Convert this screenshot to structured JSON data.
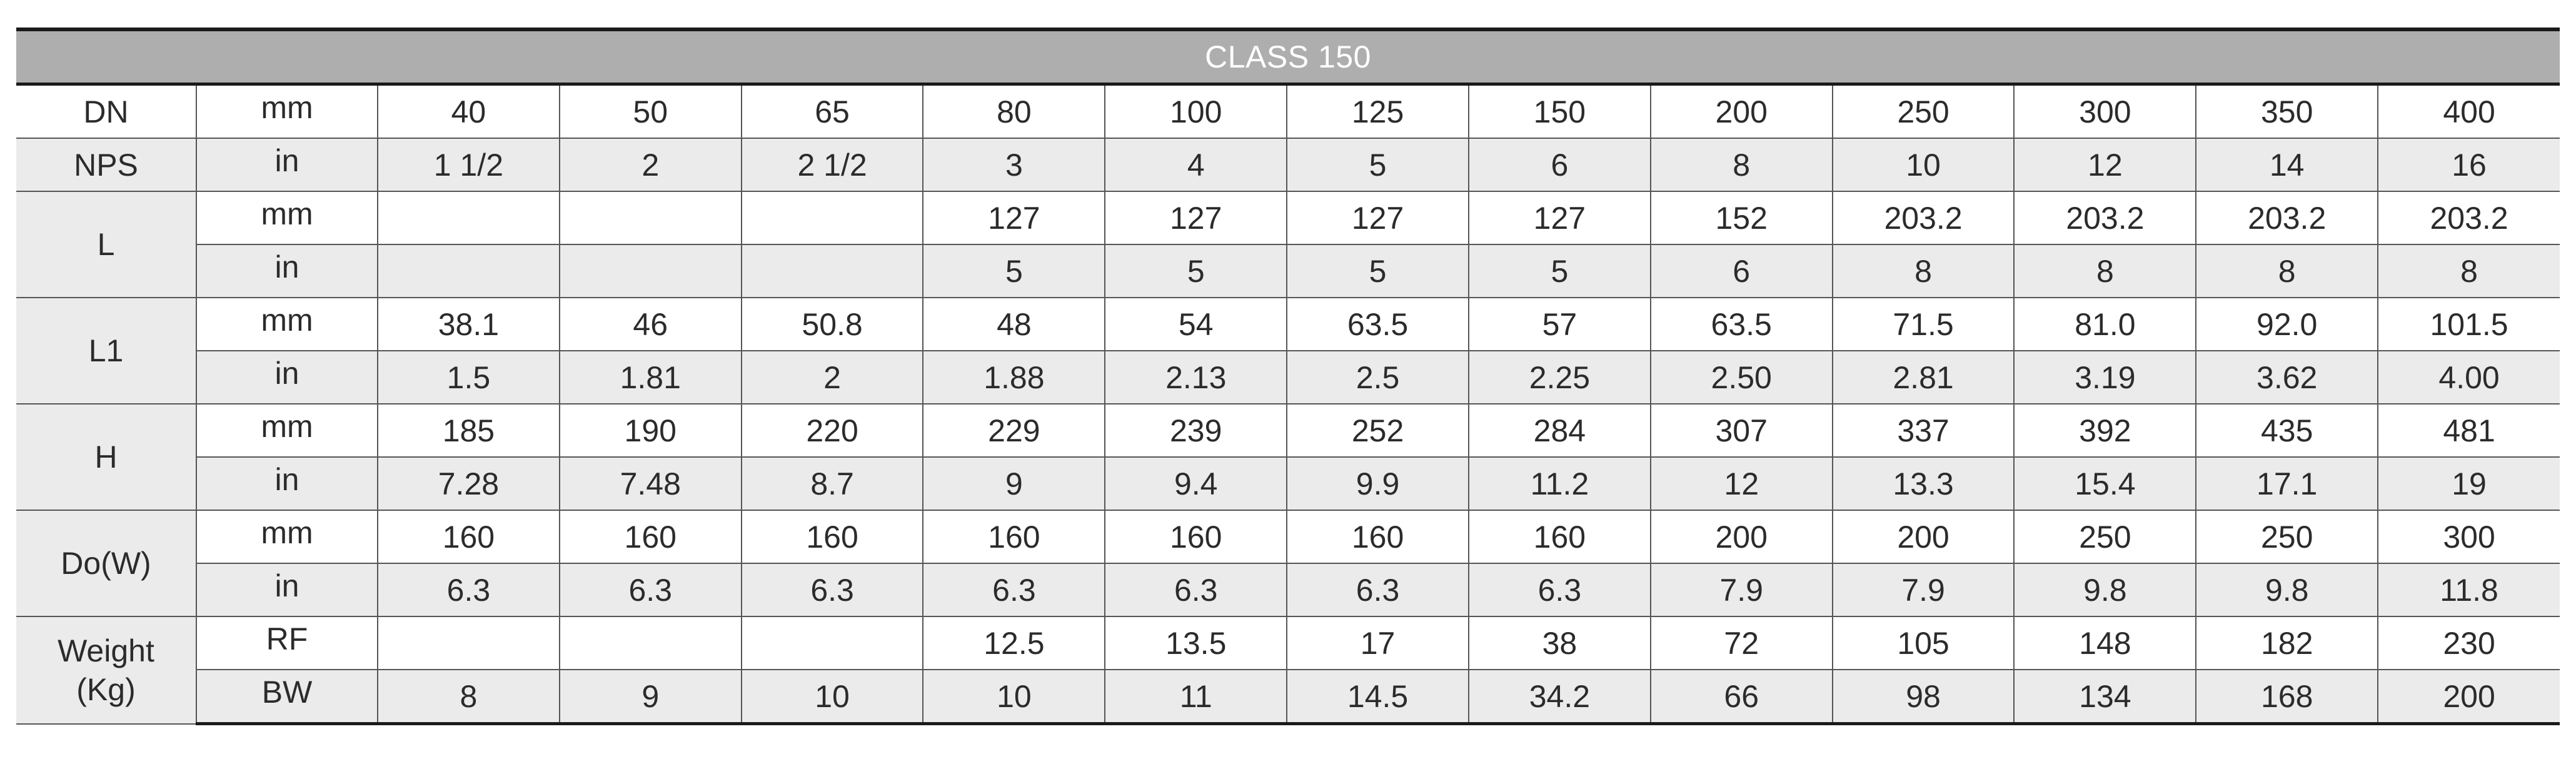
{
  "title": "CLASS 150",
  "rows": [
    {
      "label": "DN",
      "unit": "mm",
      "values": [
        "40",
        "50",
        "65",
        "80",
        "100",
        "125",
        "150",
        "200",
        "250",
        "300",
        "350",
        "400"
      ]
    },
    {
      "label": "NPS",
      "unit": "in",
      "values": [
        "1 1/2",
        "2",
        "2 1/2",
        "3",
        "4",
        "5",
        "6",
        "8",
        "10",
        "12",
        "14",
        "16"
      ]
    },
    {
      "label": "L",
      "unit": "mm",
      "values": [
        "",
        "",
        "",
        "127",
        "127",
        "127",
        "127",
        "152",
        "203.2",
        "203.2",
        "203.2",
        "203.2"
      ]
    },
    {
      "label": "",
      "unit": "in",
      "values": [
        "",
        "",
        "",
        "5",
        "5",
        "5",
        "5",
        "6",
        "8",
        "8",
        "8",
        "8"
      ]
    },
    {
      "label": "L1",
      "unit": "mm",
      "values": [
        "38.1",
        "46",
        "50.8",
        "48",
        "54",
        "63.5",
        "57",
        "63.5",
        "71.5",
        "81.0",
        "92.0",
        "101.5"
      ]
    },
    {
      "label": "",
      "unit": "in",
      "values": [
        "1.5",
        "1.81",
        "2",
        "1.88",
        "2.13",
        "2.5",
        "2.25",
        "2.50",
        "2.81",
        "3.19",
        "3.62",
        "4.00"
      ]
    },
    {
      "label": "H",
      "unit": "mm",
      "values": [
        "185",
        "190",
        "220",
        "229",
        "239",
        "252",
        "284",
        "307",
        "337",
        "392",
        "435",
        "481"
      ]
    },
    {
      "label": "",
      "unit": "in",
      "values": [
        "7.28",
        "7.48",
        "8.7",
        "9",
        "9.4",
        "9.9",
        "11.2",
        "12",
        "13.3",
        "15.4",
        "17.1",
        "19"
      ]
    },
    {
      "label": "Do(W)",
      "unit": "mm",
      "values": [
        "160",
        "160",
        "160",
        "160",
        "160",
        "160",
        "160",
        "200",
        "200",
        "250",
        "250",
        "300"
      ]
    },
    {
      "label": "",
      "unit": "in",
      "values": [
        "6.3",
        "6.3",
        "6.3",
        "6.3",
        "6.3",
        "6.3",
        "6.3",
        "7.9",
        "7.9",
        "9.8",
        "9.8",
        "11.8"
      ]
    },
    {
      "label": "Weight",
      "label2": "(Kg)",
      "unit": "RF",
      "values": [
        "",
        "",
        "",
        "12.5",
        "13.5",
        "17",
        "38",
        "72",
        "105",
        "148",
        "182",
        "230"
      ]
    },
    {
      "label": "",
      "unit": "BW",
      "values": [
        "8",
        "9",
        "10",
        "10",
        "11",
        "14.5",
        "34.2",
        "66",
        "98",
        "134",
        "168",
        "200"
      ]
    }
  ]
}
